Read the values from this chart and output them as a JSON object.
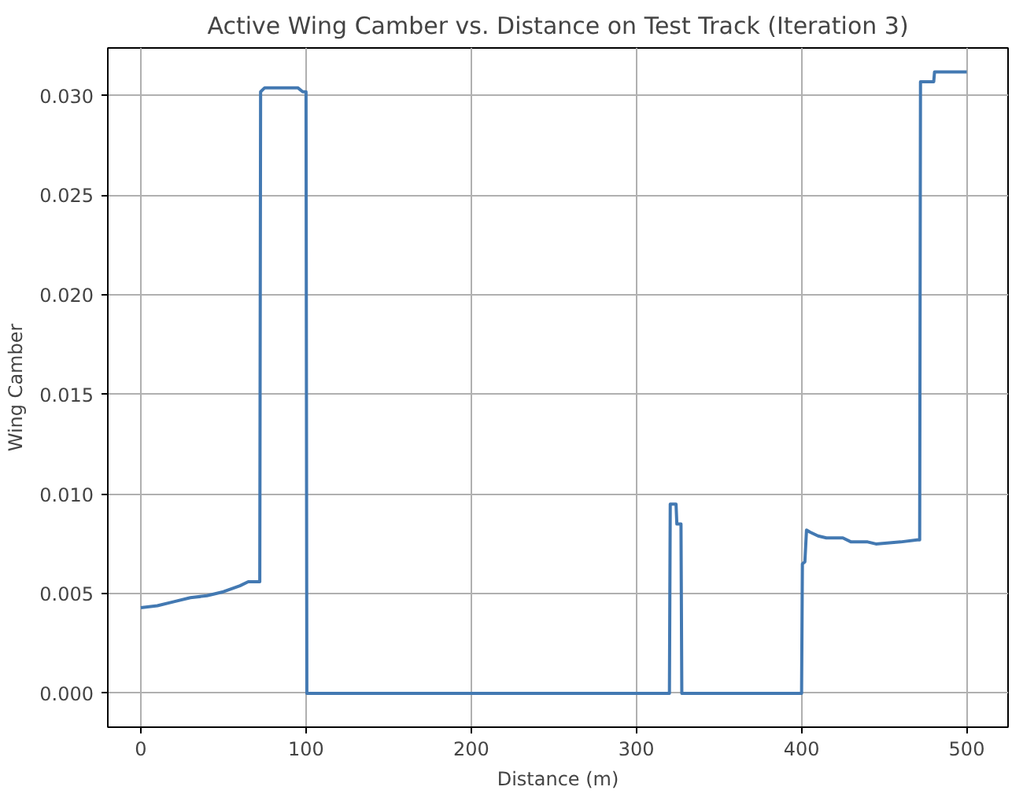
{
  "chart_data": {
    "type": "line",
    "title": "Active Wing Camber vs. Distance on Test Track (Iteration 3)",
    "xlabel": "Distance (m)",
    "ylabel": "Wing Camber",
    "x": [
      0,
      10,
      20,
      30,
      40,
      50,
      60,
      65,
      72,
      72.5,
      75,
      80,
      95,
      98,
      100,
      100.5,
      200,
      260,
      320,
      320.5,
      324,
      324.5,
      327,
      327.5,
      400,
      400.5,
      402,
      403,
      405,
      410,
      415,
      425,
      430,
      440,
      445,
      460,
      470,
      471.5,
      472,
      480,
      480.5,
      500
    ],
    "series": [
      {
        "color": "#4379b2",
        "values": [
          0.0043,
          0.0044,
          0.0046,
          0.0048,
          0.0049,
          0.0051,
          0.0054,
          0.0056,
          0.0056,
          0.0302,
          0.0304,
          0.0304,
          0.0304,
          0.0302,
          0.0302,
          0,
          0,
          0,
          0,
          0.0095,
          0.0095,
          0.0085,
          0.0085,
          0,
          0,
          0.0065,
          0.0066,
          0.0082,
          0.0081,
          0.0079,
          0.0078,
          0.0078,
          0.0076,
          0.0076,
          0.0075,
          0.0076,
          0.0077,
          0.0077,
          0.0307,
          0.0307,
          0.0312,
          0.0312
        ]
      }
    ],
    "xlim": [
      -20,
      525
    ],
    "ylim": [
      -0.0017,
      0.0324
    ],
    "xticks": [
      0,
      100,
      200,
      300,
      400,
      500
    ],
    "yticks": [
      {
        "value": 0,
        "label": "0.000"
      },
      {
        "value": 0.005,
        "label": "0.005"
      },
      {
        "value": 0.01,
        "label": "0.010"
      },
      {
        "value": 0.015,
        "label": "0.015"
      },
      {
        "value": 0.02,
        "label": "0.020"
      },
      {
        "value": 0.025,
        "label": "0.025"
      },
      {
        "value": 0.03,
        "label": "0.030"
      }
    ],
    "grid": true,
    "line_style": "solid"
  }
}
